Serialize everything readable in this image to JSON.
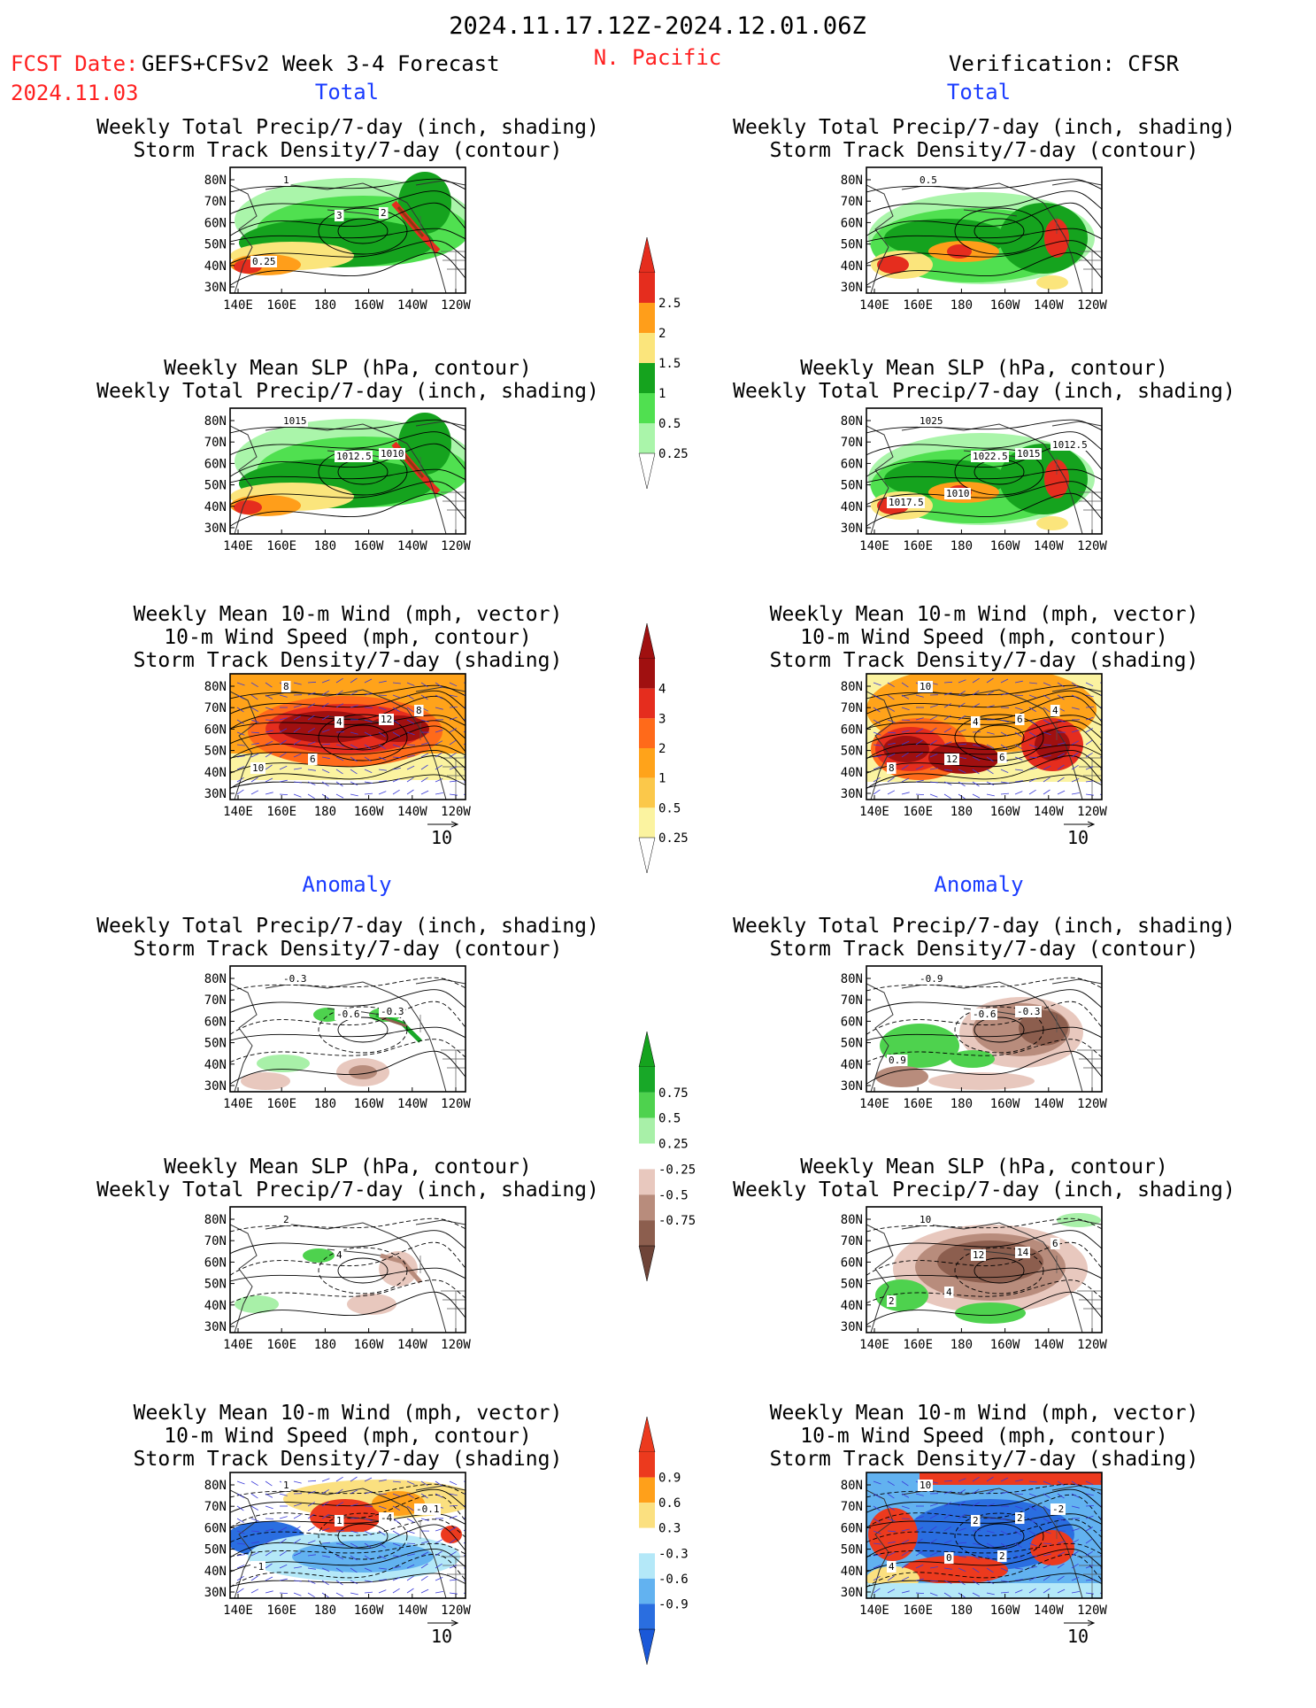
{
  "header": {
    "date_range": "2024.11.17.12Z-2024.12.01.06Z",
    "fcst_label": "FCST Date:",
    "fcst_product": "GEFS+CFSv2 Week 3-4 Forecast",
    "fcst_date": "2024.11.03",
    "region": "N. Pacific",
    "verification": "Verification: CFSR"
  },
  "colors": {
    "red": "#ff2020",
    "blue": "#1a3cff",
    "black": "#000000"
  },
  "section_labels": {
    "total": "Total",
    "anomaly": "Anomaly"
  },
  "panel_titles": {
    "precip_track": [
      "Weekly Total Precip/7-day (inch, shading)",
      "Storm Track Density/7-day (contour)"
    ],
    "slp_precip": [
      "Weekly Mean SLP (hPa, contour)",
      "Weekly Total Precip/7-day (inch, shading)"
    ],
    "wind_track": [
      "Weekly Mean 10-m Wind (mph, vector)",
      "10-m Wind Speed (mph, contour)",
      "Storm Track Density/7-day (shading)"
    ]
  },
  "axes": {
    "x_ticks": [
      "140E",
      "160E",
      "180",
      "160W",
      "140W",
      "120W"
    ],
    "y_ticks": [
      "80N",
      "70N",
      "60N",
      "50N",
      "40N",
      "30N"
    ]
  },
  "vector_ref": "10",
  "colorbars": [
    {
      "id": "total-precip",
      "labels": [
        "2.5",
        "2",
        "1.5",
        "1",
        "0.5",
        "0.25"
      ],
      "colors": [
        "#e52d1e",
        "#ff9e1a",
        "#fbe57c",
        "#15a31e",
        "#50e050",
        "#aaf5aa"
      ],
      "top_arrow": "#e52d1e",
      "bottom_arrow": "#ffffff"
    },
    {
      "id": "total-track",
      "labels": [
        "4",
        "3",
        "2",
        "1",
        "0.5",
        "0.25"
      ],
      "colors": [
        "#a01010",
        "#e52d1e",
        "#ff6a1a",
        "#ffa31a",
        "#fbc84a",
        "#fbf3a0"
      ],
      "top_arrow": "#a01010",
      "bottom_arrow": "#ffffff"
    },
    {
      "id": "anom-precip",
      "labels": [
        "0.75",
        "0.5",
        "0.25",
        "-0.25",
        "-0.5",
        "-0.75"
      ],
      "colors": [
        "#18a828",
        "#4ed24e",
        "#a8f0a8",
        "#ffffff",
        "#e8c8be",
        "#b88c7c",
        "#8c5e4e"
      ],
      "top_arrow": "#15a31e",
      "bottom_arrow": "#6e4438"
    },
    {
      "id": "anom-track",
      "labels": [
        "0.9",
        "0.6",
        "0.3",
        "-0.3",
        "-0.6",
        "-0.9"
      ],
      "colors": [
        "#ec3a1e",
        "#ffa01a",
        "#fbe080",
        "#ffffff",
        "#b4e8f8",
        "#62b2f0",
        "#2a6ee0"
      ],
      "top_arrow": "#ec3a1e",
      "bottom_arrow": "#1a58d8"
    }
  ],
  "contour_labels": {
    "l_total_precip": [
      "1",
      "3",
      "2",
      "0.25"
    ],
    "r_total_precip": [
      "0.5"
    ],
    "l_total_slp": [
      "1015",
      "1012.5",
      "1010"
    ],
    "r_total_slp": [
      "1025",
      "1022.5",
      "1015",
      "1017.5",
      "1012.5",
      "1010"
    ],
    "l_total_wind": [
      "8",
      "4",
      "12",
      "10",
      "8",
      "6"
    ],
    "r_total_wind": [
      "10",
      "4",
      "6",
      "8",
      "4",
      "12",
      "6"
    ],
    "l_anom_precip": [
      "-0.3",
      "-0.6",
      "-0.3"
    ],
    "r_anom_precip": [
      "-0.9",
      "-0.6",
      "-0.3",
      "0.9"
    ],
    "l_anom_slp": [
      "2",
      "4"
    ],
    "r_anom_slp": [
      "10",
      "12",
      "14",
      "2",
      "6",
      "4"
    ],
    "l_anom_wind": [
      "1",
      "1",
      "-4",
      "-1",
      "-0.1"
    ],
    "r_anom_wind": [
      "10",
      "2",
      "2",
      "4",
      "-2",
      "0",
      "2"
    ]
  }
}
